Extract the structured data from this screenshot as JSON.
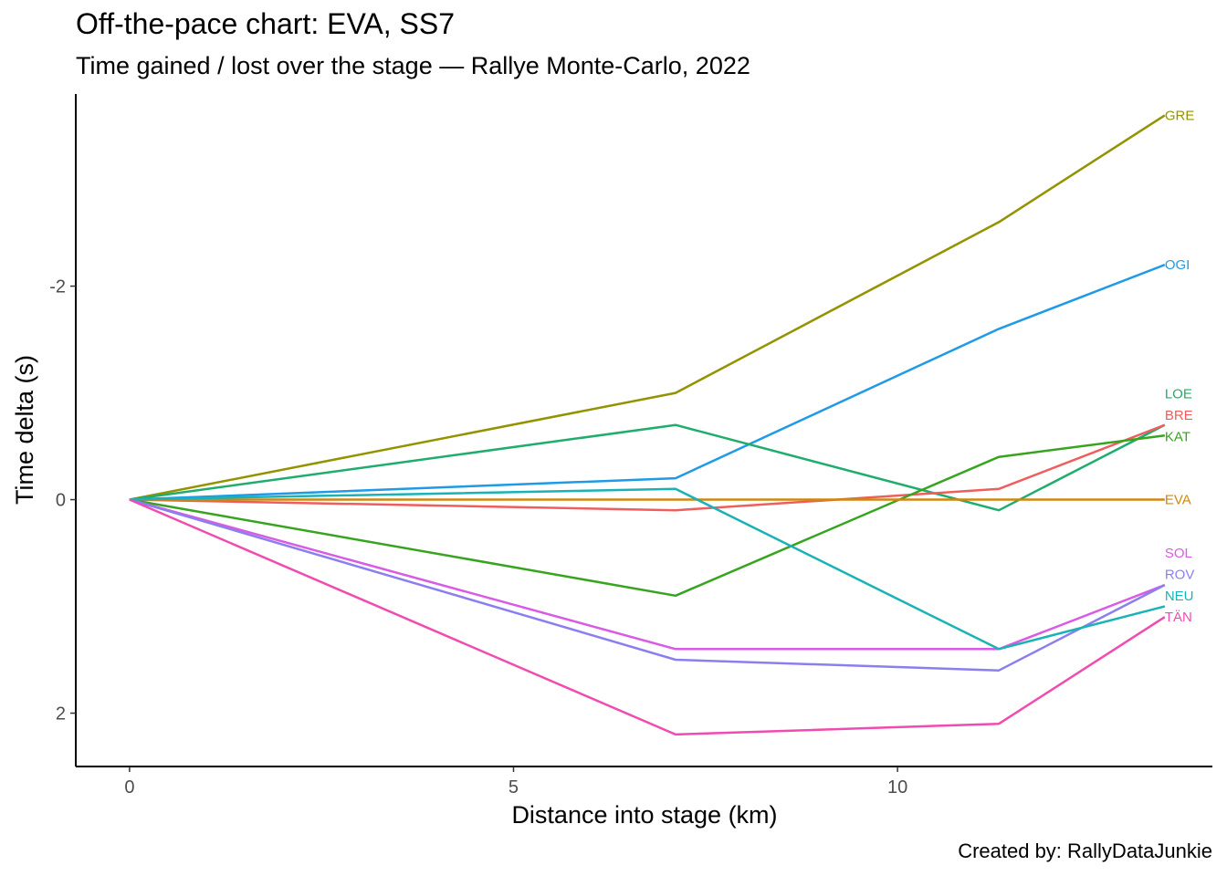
{
  "title": "Off-the-pace chart: EVA, SS7",
  "subtitle": "Time gained / lost over the stage — Rallye Monte-Carlo, 2022",
  "caption": "Created by: RallyDataJunkie",
  "chart_data": {
    "type": "line",
    "title": "Off-the-pace chart: EVA, SS7",
    "subtitle": "Time gained / lost over the stage — Rallye Monte-Carlo, 2022",
    "xlabel": "Distance into stage (km)",
    "ylabel": "Time delta (s)",
    "x": [
      0,
      7.11,
      11.32,
      13.48
    ],
    "xlim": [
      -0.7,
      14.1
    ],
    "ylim": [
      2.5,
      -3.8
    ],
    "y_reversed": true,
    "x_ticks": [
      0,
      5,
      10
    ],
    "y_ticks": [
      -2,
      0,
      2
    ],
    "grid": false,
    "legend": "direct labels at line ends",
    "series": [
      {
        "name": "GRE",
        "color": "#939300",
        "values": [
          0,
          -1.0,
          -2.6,
          -3.6
        ]
      },
      {
        "name": "OGI",
        "color": "#1f9ae6",
        "values": [
          0,
          -0.2,
          -1.6,
          -2.2
        ]
      },
      {
        "name": "LOE",
        "color": "#1fad6e",
        "values": [
          0,
          -0.7,
          0.1,
          -0.7
        ]
      },
      {
        "name": "BRE",
        "color": "#ee5e5e",
        "values": [
          0,
          0.1,
          -0.1,
          -0.7
        ]
      },
      {
        "name": "KAT",
        "color": "#36a41e",
        "values": [
          0,
          0.9,
          -0.4,
          -0.6
        ]
      },
      {
        "name": "EVA",
        "color": "#d0870d",
        "values": [
          0,
          0,
          0,
          0
        ]
      },
      {
        "name": "SOL",
        "color": "#d95ae4",
        "values": [
          0,
          1.4,
          1.4,
          0.8
        ]
      },
      {
        "name": "ROV",
        "color": "#8b7ff0",
        "values": [
          0,
          1.5,
          1.6,
          0.8
        ]
      },
      {
        "name": "NEU",
        "color": "#1bb2b5",
        "values": [
          0,
          -0.1,
          1.4,
          1.0
        ]
      },
      {
        "name": "TÄN",
        "color": "#f04bb0",
        "values": [
          0,
          2.2,
          2.1,
          1.1
        ]
      }
    ],
    "end_labels": [
      {
        "name": "GRE",
        "y": -3.6
      },
      {
        "name": "OGI",
        "y": -2.2
      },
      {
        "name": "LOE",
        "y": -0.99
      },
      {
        "name": "BRE",
        "y": -0.79
      },
      {
        "name": "KAT",
        "y": -0.59
      },
      {
        "name": "EVA",
        "y": 0
      },
      {
        "name": "SOL",
        "y": 0.5
      },
      {
        "name": "ROV",
        "y": 0.7
      },
      {
        "name": "NEU",
        "y": 0.9
      },
      {
        "name": "TÄN",
        "y": 1.1
      }
    ]
  }
}
